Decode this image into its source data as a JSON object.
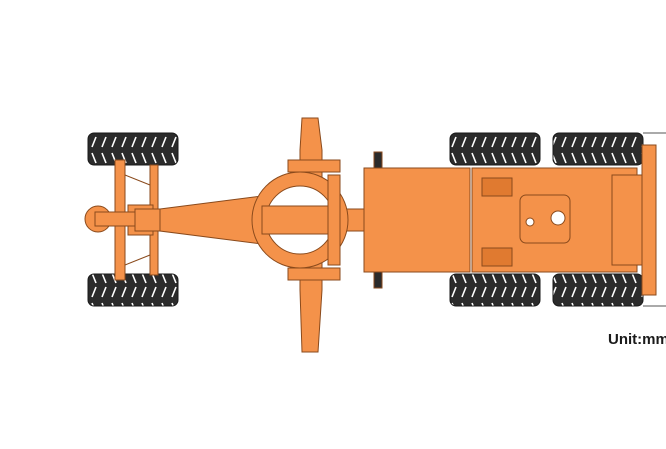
{
  "unit_label": "Unit:mm",
  "colors": {
    "body": "#F4924A",
    "body_dark": "#E07A30",
    "outline": "#8A4A1C",
    "tire": "#2B2B2B",
    "tread": "#ffffff",
    "dimension_line": "#555555"
  },
  "icons": [
    "motor-grader-top-view"
  ]
}
